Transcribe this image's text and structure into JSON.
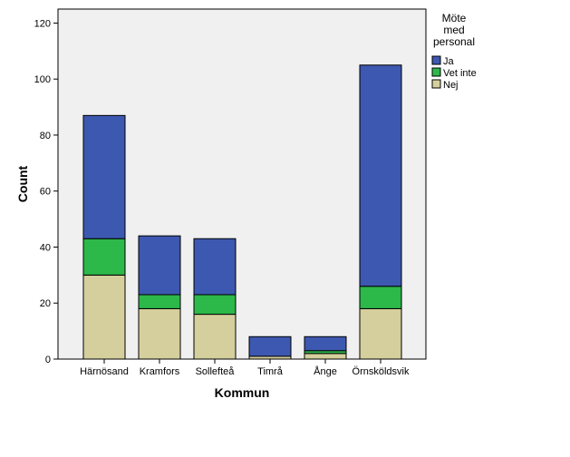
{
  "chart_data": {
    "type": "bar",
    "stacked": true,
    "title": "",
    "xlabel": "Kommun",
    "ylabel": "Count",
    "ylim": [
      0,
      125
    ],
    "yticks": [
      0,
      20,
      40,
      60,
      80,
      100,
      120
    ],
    "categories": [
      "Härnösand",
      "Kramfors",
      "Sollefteå",
      "Timrå",
      "Ånge",
      "Örnsköldsvik"
    ],
    "series": [
      {
        "name": "Nej",
        "color": "#d5cf9d",
        "values": [
          30,
          18,
          16,
          1,
          2,
          18
        ]
      },
      {
        "name": "Vet inte",
        "color": "#2db84a",
        "values": [
          13,
          5,
          7,
          0,
          1,
          8
        ]
      },
      {
        "name": "Ja",
        "color": "#3d58b0",
        "values": [
          44,
          21,
          20,
          7,
          5,
          79
        ]
      }
    ],
    "legend": {
      "title_lines": [
        "Möte",
        "med",
        "personal"
      ],
      "order": [
        "Ja",
        "Vet inte",
        "Nej"
      ],
      "placement": "right"
    },
    "grid": false,
    "plot_background": "#f0f0f0"
  }
}
